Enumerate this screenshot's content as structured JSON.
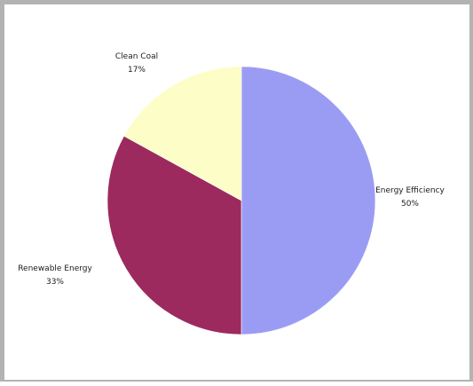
{
  "chart_data": {
    "type": "pie",
    "start_angle_deg": 0,
    "direction": "clockwise",
    "legend": "none",
    "slices": [
      {
        "label": "Energy Efficiency",
        "value": 50,
        "display": "50%",
        "color": "#9a9cf4"
      },
      {
        "label": "Renewable Energy",
        "value": 33,
        "display": "33%",
        "color": "#9c2a5e"
      },
      {
        "label": "Clean Coal",
        "value": 17,
        "display": "17%",
        "color": "#fdfdc7"
      }
    ]
  }
}
